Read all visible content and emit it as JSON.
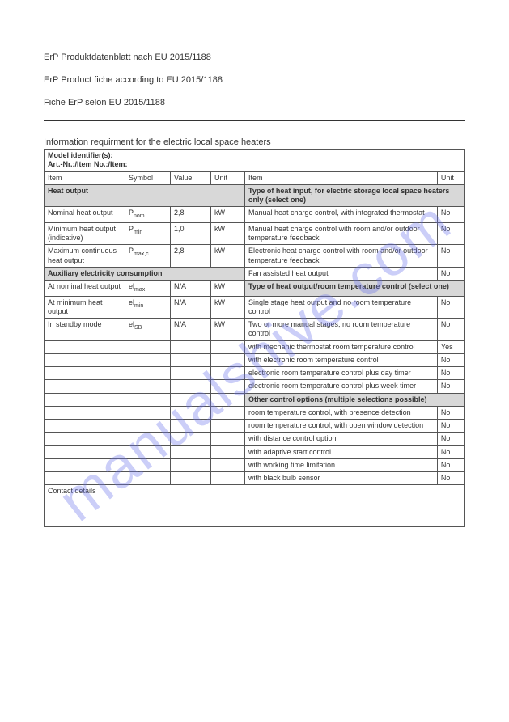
{
  "watermark": "manualshive.com",
  "titles": {
    "de": "ErP Produktdatenblatt nach EU 2015/1188",
    "en": "ErP Product fiche according to EU 2015/1188",
    "fr": "Fiche ErP selon EU 2015/1188"
  },
  "requirement_title": "Information requirment for the electric local space heaters",
  "model_line1": "Model identifier(s):",
  "model_line2": "Art.-Nr.:/Item No.:/Item:",
  "headers": {
    "item": "Item",
    "symbol": "Symbol",
    "value": "Value",
    "unit": "Unit"
  },
  "left_sections": {
    "heat_output": "Heat output",
    "aux": "Auxiliary electricity consumption"
  },
  "left_rows": [
    {
      "item": "Nominal heat output",
      "symbol": "P",
      "sub": "nom",
      "value": "2,8",
      "unit": "kW"
    },
    {
      "item": "Minimum heat output (indicative)",
      "symbol": "P",
      "sub": "min",
      "value": "1,0",
      "unit": "kW"
    },
    {
      "item": "Maximum continuous heat output",
      "symbol": "P",
      "sub": "max,c",
      "value": "2,8",
      "unit": "kW"
    }
  ],
  "aux_rows": [
    {
      "item": "At nominal heat output",
      "symbol": "el",
      "sub": "max",
      "value": "N/A",
      "unit": "kW"
    },
    {
      "item": "At minimum heat output",
      "symbol": "el",
      "sub": "min",
      "value": "N/A",
      "unit": "kW"
    },
    {
      "item": "In standby mode",
      "symbol": "el",
      "sub": "SB",
      "value": "N/A",
      "unit": "kW"
    }
  ],
  "right_sections": {
    "type_heat_input": "Type of heat input, for electric storage local space heaters only (select one)",
    "type_heat_output": "Type of heat output/room temperature control (select one)",
    "other_options": "Other control options (multiple selections possible)"
  },
  "heat_input_rows": [
    {
      "desc": "Manual heat charge control, with integrated thermostat",
      "unit": "No"
    },
    {
      "desc": "Manual heat charge control with room and/or outdoor temperature feedback",
      "unit": "No"
    },
    {
      "desc": "Electronic heat charge control with room and/or outdoor temperature feedback",
      "unit": "No"
    }
  ],
  "fan_row": {
    "desc": "Fan assisted heat output",
    "unit": "No"
  },
  "heat_output_rows": [
    {
      "desc": "Single stage heat output and no room temperature control",
      "unit": "No"
    },
    {
      "desc": "Two or more manual stages, no room temperature control",
      "unit": "No"
    },
    {
      "desc": "with mechanic thermostat room temperature control",
      "unit": "Yes"
    },
    {
      "desc": "with electronic room temperature control",
      "unit": "No"
    },
    {
      "desc": "electronic room temperature control plus day timer",
      "unit": "No"
    },
    {
      "desc": "electronic room temperature control plus week timer",
      "unit": "No"
    }
  ],
  "other_rows": [
    {
      "desc": "room temperature control, with presence detection",
      "unit": "No"
    },
    {
      "desc": "room temperature control, with open window detection",
      "unit": "No"
    },
    {
      "desc": "with distance control option",
      "unit": "No"
    },
    {
      "desc": "with adaptive start control",
      "unit": "No"
    },
    {
      "desc": "with working time limitation",
      "unit": "No"
    },
    {
      "desc": "with black bulb sensor",
      "unit": "No"
    }
  ],
  "contact": "Contact details"
}
